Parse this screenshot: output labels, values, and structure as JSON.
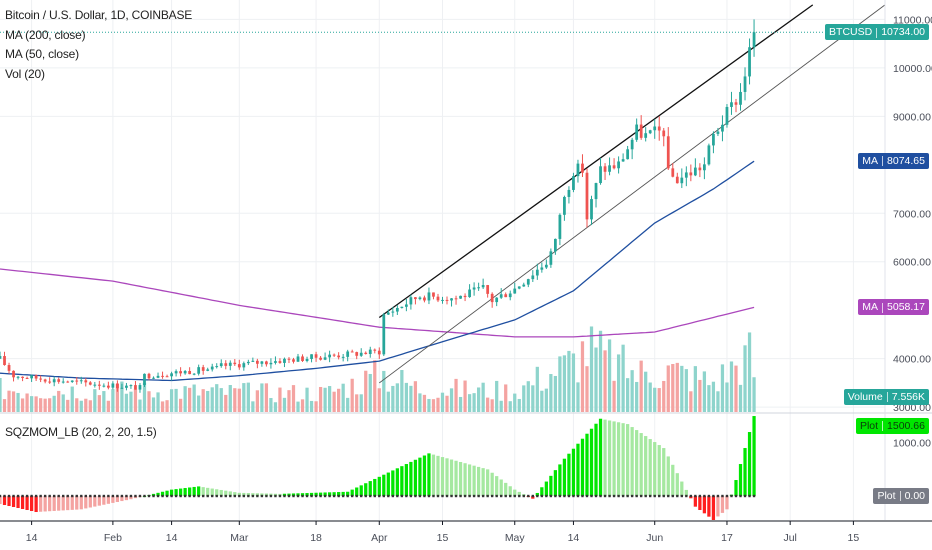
{
  "header": {
    "title": "Bitcoin / U.S. Dollar, 1D, COINBASE",
    "ma200_label": "MA (200, close)",
    "ma50_label": "MA (50, close)",
    "vol_label": "Vol (20)",
    "sqz_label": "SQZMOM_LB (20, 2, 20, 1.5)"
  },
  "price_axis": {
    "ticks": [
      {
        "label": "11000.00",
        "value": 11000
      },
      {
        "label": "10000.00",
        "value": 10000
      },
      {
        "label": "9000.00",
        "value": 9000
      },
      {
        "label": "7000.00",
        "value": 7000
      },
      {
        "label": "6000.00",
        "value": 6000
      },
      {
        "label": "4000.00",
        "value": 4000
      },
      {
        "label": "3000.00",
        "value": 3000
      }
    ]
  },
  "osc_axis": {
    "tick_label": "1000.00",
    "tick_value": 1000
  },
  "x_axis": {
    "ticks": [
      {
        "label": "14",
        "date": "2019-01-14"
      },
      {
        "label": "Feb",
        "date": "2019-02-01"
      },
      {
        "label": "14",
        "date": "2019-02-14"
      },
      {
        "label": "Mar",
        "date": "2019-03-01"
      },
      {
        "label": "18",
        "date": "2019-03-18"
      },
      {
        "label": "Apr",
        "date": "2019-04-01"
      },
      {
        "label": "15",
        "date": "2019-04-15"
      },
      {
        "label": "May",
        "date": "2019-05-01"
      },
      {
        "label": "14",
        "date": "2019-05-14"
      },
      {
        "label": "Jun",
        "date": "2019-06-01"
      },
      {
        "label": "17",
        "date": "2019-06-17"
      },
      {
        "label": "Jul",
        "date": "2019-07-01"
      },
      {
        "label": "15",
        "date": "2019-07-15"
      }
    ]
  },
  "tags": {
    "btc": {
      "name": "BTCUSD",
      "value": "10734.00",
      "price": 10734,
      "color": "#26a69a"
    },
    "ma50": {
      "name": "MA",
      "value": "8074.65",
      "price": 8074.65,
      "color": "#1f4fa0"
    },
    "ma200": {
      "name": "MA",
      "value": "5058.17",
      "price": 5058.17,
      "color": "#ab47bc"
    },
    "volume": {
      "name": "Volume",
      "value": "7.556K",
      "color": "#26a69a"
    },
    "plot_pos": {
      "name": "Plot",
      "value": "1500.66",
      "level": 1500.66,
      "color": "#00e600"
    },
    "plot_zero": {
      "name": "Plot",
      "value": "0.00",
      "level": 0,
      "color": "#787b86"
    }
  },
  "chart_data": {
    "type": "candlestick",
    "symbol": "Bitcoin / U.S. Dollar",
    "interval": "1D",
    "exchange": "COINBASE",
    "x_range": [
      "2019-01-07",
      "2019-07-22"
    ],
    "price_range": [
      2900,
      11400
    ],
    "oscillator_range": [
      -450,
      1520
    ],
    "anchors": {
      "close": [
        [
          "2019-01-07",
          4000
        ],
        [
          "2019-01-10",
          3650
        ],
        [
          "2019-01-20",
          3550
        ],
        [
          "2019-02-07",
          3400
        ],
        [
          "2019-02-08",
          3650
        ],
        [
          "2019-02-24",
          3800
        ],
        [
          "2019-02-25",
          3850
        ],
        [
          "2019-03-20",
          4050
        ],
        [
          "2019-04-01",
          4150
        ],
        [
          "2019-04-02",
          4900
        ],
        [
          "2019-04-10",
          5300
        ],
        [
          "2019-04-18",
          5250
        ],
        [
          "2019-04-24",
          5450
        ],
        [
          "2019-04-26",
          5200
        ],
        [
          "2019-05-01",
          5450
        ],
        [
          "2019-05-08",
          6000
        ],
        [
          "2019-05-10",
          6400
        ],
        [
          "2019-05-11",
          7000
        ],
        [
          "2019-05-14",
          7900
        ],
        [
          "2019-05-16",
          7900
        ],
        [
          "2019-05-17",
          6900
        ],
        [
          "2019-05-20",
          7900
        ],
        [
          "2019-05-24",
          8000
        ],
        [
          "2019-05-28",
          8700
        ],
        [
          "2019-05-30",
          8600
        ],
        [
          "2019-06-03",
          8700
        ],
        [
          "2019-06-04",
          7800
        ],
        [
          "2019-06-06",
          7700
        ],
        [
          "2019-06-12",
          8000
        ],
        [
          "2019-06-14",
          8600
        ],
        [
          "2019-06-20",
          9500
        ],
        [
          "2019-06-23",
          10734
        ]
      ],
      "ma50": [
        [
          "2019-01-07",
          3700
        ],
        [
          "2019-01-25",
          3600
        ],
        [
          "2019-02-14",
          3550
        ],
        [
          "2019-03-01",
          3650
        ],
        [
          "2019-03-18",
          3800
        ],
        [
          "2019-04-01",
          3950
        ],
        [
          "2019-04-15",
          4350
        ],
        [
          "2019-05-01",
          4800
        ],
        [
          "2019-05-14",
          5400
        ],
        [
          "2019-06-01",
          6800
        ],
        [
          "2019-06-14",
          7500
        ],
        [
          "2019-06-23",
          8074.65
        ]
      ],
      "ma200": [
        [
          "2019-01-07",
          5850
        ],
        [
          "2019-02-01",
          5600
        ],
        [
          "2019-03-01",
          5100
        ],
        [
          "2019-04-01",
          4650
        ],
        [
          "2019-05-01",
          4450
        ],
        [
          "2019-05-14",
          4450
        ],
        [
          "2019-06-01",
          4550
        ],
        [
          "2019-06-23",
          5058.17
        ]
      ],
      "volume_k": [
        [
          "2019-01-07",
          5.5
        ],
        [
          "2019-02-07",
          5.0
        ],
        [
          "2019-03-20",
          4.5
        ],
        [
          "2019-04-02",
          9.0
        ],
        [
          "2019-04-10",
          5.5
        ],
        [
          "2019-05-01",
          5.0
        ],
        [
          "2019-05-14",
          12.0
        ],
        [
          "2019-05-17",
          15.0
        ],
        [
          "2019-05-28",
          9.0
        ],
        [
          "2019-06-04",
          10.0
        ],
        [
          "2019-06-14",
          7.0
        ],
        [
          "2019-06-22",
          13.5
        ],
        [
          "2019-06-23",
          7.556
        ]
      ],
      "squeeze_momentum": [
        [
          "2019-01-07",
          -150
        ],
        [
          "2019-01-15",
          -300
        ],
        [
          "2019-01-25",
          -250
        ],
        [
          "2019-02-05",
          -60
        ],
        [
          "2019-02-14",
          120
        ],
        [
          "2019-02-20",
          180
        ],
        [
          "2019-03-01",
          60
        ],
        [
          "2019-03-10",
          40
        ],
        [
          "2019-03-25",
          80
        ],
        [
          "2019-04-12",
          800
        ],
        [
          "2019-04-25",
          500
        ],
        [
          "2019-05-01",
          120
        ],
        [
          "2019-05-05",
          -50
        ],
        [
          "2019-05-12",
          700
        ],
        [
          "2019-05-20",
          1450
        ],
        [
          "2019-05-26",
          1350
        ],
        [
          "2019-06-03",
          900
        ],
        [
          "2019-06-10",
          -200
        ],
        [
          "2019-06-14",
          -450
        ],
        [
          "2019-06-17",
          -250
        ],
        [
          "2019-06-19",
          300
        ],
        [
          "2019-06-23",
          1500.66
        ]
      ]
    },
    "trend_channel": {
      "upper": [
        [
          "2019-04-01",
          4850
        ],
        [
          "2019-07-06",
          11300
        ]
      ],
      "lower": [
        [
          "2019-04-01",
          3500
        ],
        [
          "2019-07-22",
          11300
        ]
      ]
    },
    "last_close": 10734,
    "last_volume": "7.556K",
    "last_momentum": 1500.66
  },
  "colors": {
    "up": "#26a69a",
    "down": "#ef5350",
    "vol_up": "#8ed4cc",
    "vol_down": "#f4a3a1",
    "ma50": "#1f4fa0",
    "ma200": "#ab47bc",
    "mom_up_strong": "#00e600",
    "mom_up_weak": "#a5e8a0",
    "mom_down_strong": "#ff2020",
    "mom_down_weak": "#f4a3a1"
  }
}
